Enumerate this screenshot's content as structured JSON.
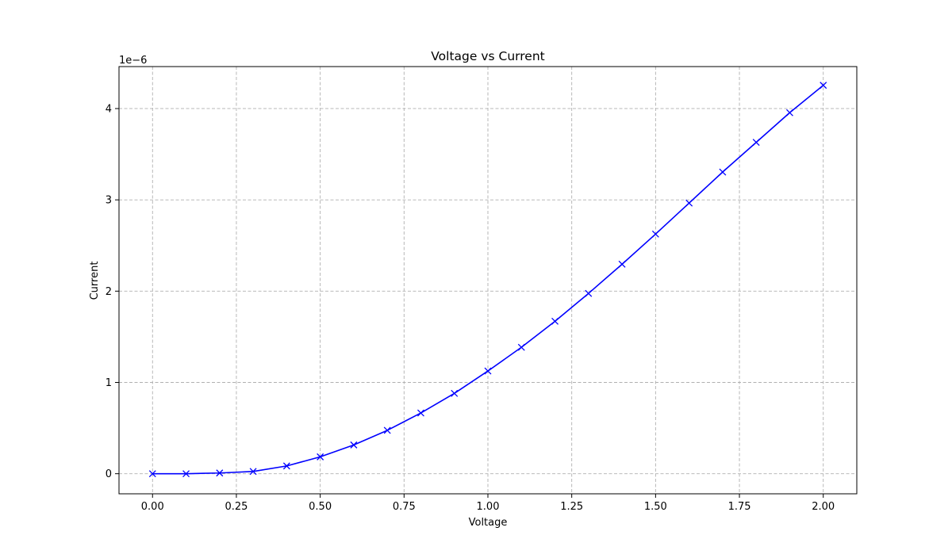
{
  "chart_data": {
    "type": "line",
    "title": "Voltage vs Current",
    "xlabel": "Voltage",
    "ylabel": "Current",
    "y_offset_text": "1e−6",
    "y_scale_factor": 1e-06,
    "xlim": [
      -0.1,
      2.1
    ],
    "ylim": [
      -2.2e-07,
      4.46e-06
    ],
    "x_ticks": [
      {
        "value": 0.0,
        "label": "0.00"
      },
      {
        "value": 0.25,
        "label": "0.25"
      },
      {
        "value": 0.5,
        "label": "0.50"
      },
      {
        "value": 0.75,
        "label": "0.75"
      },
      {
        "value": 1.0,
        "label": "1.00"
      },
      {
        "value": 1.25,
        "label": "1.25"
      },
      {
        "value": 1.5,
        "label": "1.50"
      },
      {
        "value": 1.75,
        "label": "1.75"
      },
      {
        "value": 2.0,
        "label": "2.00"
      }
    ],
    "y_ticks": [
      {
        "value": 0,
        "label": "0"
      },
      {
        "value": 1e-06,
        "label": "1"
      },
      {
        "value": 2e-06,
        "label": "2"
      },
      {
        "value": 3e-06,
        "label": "3"
      },
      {
        "value": 4e-06,
        "label": "4"
      }
    ],
    "grid": true,
    "grid_style": "dashed",
    "series": [
      {
        "color": "#0000ff",
        "marker": "x",
        "x": [
          0.0,
          0.1,
          0.2,
          0.3,
          0.4,
          0.5,
          0.6,
          0.7,
          0.8,
          0.9,
          1.0,
          1.1,
          1.2,
          1.3,
          1.4,
          1.5,
          1.6,
          1.7,
          1.8,
          1.9,
          2.0
        ],
        "y": [
          0.0,
          0.0,
          8e-09,
          2.5e-08,
          8.5e-08,
          1.85e-07,
          3.15e-07,
          4.75e-07,
          6.65e-07,
          8.8e-07,
          1.125e-06,
          1.385e-06,
          1.67e-06,
          1.975e-06,
          2.295e-06,
          2.625e-06,
          2.965e-06,
          3.305e-06,
          3.63e-06,
          3.955e-06,
          4.255e-06
        ]
      }
    ]
  }
}
